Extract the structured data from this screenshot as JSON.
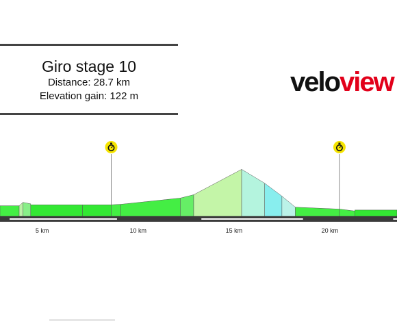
{
  "header": {
    "title": "Giro stage 10",
    "distance": "Distance: 28.7 km",
    "elevation_gain": "Elevation gain: 122 m"
  },
  "logo": {
    "part1": "velo",
    "part2": "view",
    "part1_color": "#111111",
    "part2_color": "#e2001a"
  },
  "colors": {
    "road": "#3a3a3a",
    "road_stripe": "#ffffff",
    "marker": "#f5e400",
    "marker_icon": "#111111",
    "outline": "#555555"
  },
  "markers": [
    {
      "km": 8.6,
      "icon": "stopwatch-icon"
    },
    {
      "km": 20.5,
      "icon": "stopwatch-icon"
    }
  ],
  "chart_data": {
    "type": "area",
    "title": "",
    "xlabel": "",
    "ylabel": "",
    "xlim": [
      2.8,
      23.5
    ],
    "ylim": [
      0,
      100
    ],
    "grid": false,
    "x_ticks": [
      {
        "value": 5,
        "label": "5 km"
      },
      {
        "value": 10,
        "label": "10 km"
      },
      {
        "value": 15,
        "label": "15 km"
      },
      {
        "value": 20,
        "label": "20 km"
      }
    ],
    "segments": [
      {
        "x0": 2.8,
        "x1": 3.8,
        "y0": 22,
        "y1": 22,
        "color": "#44ee44"
      },
      {
        "x0": 3.8,
        "x1": 4.0,
        "y0": 22,
        "y1": 29,
        "color": "#bbf2a6"
      },
      {
        "x0": 4.0,
        "x1": 4.4,
        "y0": 29,
        "y1": 26,
        "color": "#88ef88"
      },
      {
        "x0": 4.4,
        "x1": 7.1,
        "y0": 24,
        "y1": 24,
        "color": "#33e833"
      },
      {
        "x0": 7.1,
        "x1": 8.6,
        "y0": 24,
        "y1": 24,
        "color": "#33e833"
      },
      {
        "x0": 8.6,
        "x1": 9.1,
        "y0": 24,
        "y1": 25,
        "color": "#44ee44"
      },
      {
        "x0": 9.1,
        "x1": 12.2,
        "y0": 25,
        "y1": 38,
        "color": "#44ee44"
      },
      {
        "x0": 12.2,
        "x1": 12.9,
        "y0": 38,
        "y1": 45,
        "color": "#66ee66"
      },
      {
        "x0": 12.9,
        "x1": 15.4,
        "y0": 45,
        "y1": 98,
        "color": "#c4f5a8"
      },
      {
        "x0": 15.4,
        "x1": 16.6,
        "y0": 98,
        "y1": 69,
        "color": "#b4f4de"
      },
      {
        "x0": 16.6,
        "x1": 17.5,
        "y0": 69,
        "y1": 42,
        "color": "#88eeee"
      },
      {
        "x0": 17.5,
        "x1": 18.2,
        "y0": 42,
        "y1": 19,
        "color": "#bbf2e8"
      },
      {
        "x0": 18.2,
        "x1": 20.5,
        "y0": 19,
        "y1": 15,
        "color": "#44ee44"
      },
      {
        "x0": 20.5,
        "x1": 21.3,
        "y0": 15,
        "y1": 11,
        "color": "#44ee44"
      },
      {
        "x0": 21.3,
        "x1": 23.5,
        "y0": 13,
        "y1": 13,
        "color": "#33e833"
      }
    ],
    "stripe_gaps": [
      {
        "x0": 3.3,
        "x1": 8.9
      },
      {
        "x0": 13.3,
        "x1": 18.6
      },
      {
        "x0": 23.3,
        "x1": 23.5
      }
    ],
    "legend": "none"
  }
}
